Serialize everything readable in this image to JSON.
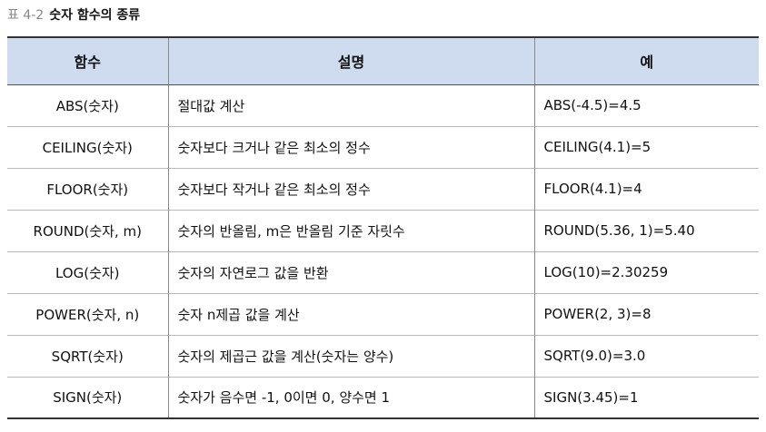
{
  "caption": {
    "label": "표 4-2",
    "title": "숫자 함수의 종류"
  },
  "table": {
    "headers": [
      "함수",
      "설명",
      "예"
    ],
    "rows": [
      {
        "func": "ABS(숫자)",
        "desc": "절대값 계산",
        "example": "ABS(-4.5)=4.5"
      },
      {
        "func": "CEILING(숫자)",
        "desc": "숫자보다 크거나 같은 최소의 정수",
        "example": "CEILING(4.1)=5"
      },
      {
        "func": "FLOOR(숫자)",
        "desc": "숫자보다 작거나 같은 최소의 정수",
        "example": "FLOOR(4.1)=4"
      },
      {
        "func": "ROUND(숫자, m)",
        "desc": "숫자의 반올림, m은 반올림 기준 자릿수",
        "example": "ROUND(5.36, 1)=5.40"
      },
      {
        "func": "LOG(숫자)",
        "desc": "숫자의 자연로그 값을 반환",
        "example": "LOG(10)=2.30259"
      },
      {
        "func": "POWER(숫자, n)",
        "desc": "숫자 n제곱 값을 계산",
        "example": "POWER(2, 3)=8"
      },
      {
        "func": "SQRT(숫자)",
        "desc": "숫자의 제곱근 값을 계산(숫자는 양수)",
        "example": "SQRT(9.0)=3.0"
      },
      {
        "func": "SIGN(숫자)",
        "desc": "숫자가 음수면 -1, 0이면 0, 양수면 1",
        "example": "SIGN(3.45)=1"
      }
    ]
  }
}
